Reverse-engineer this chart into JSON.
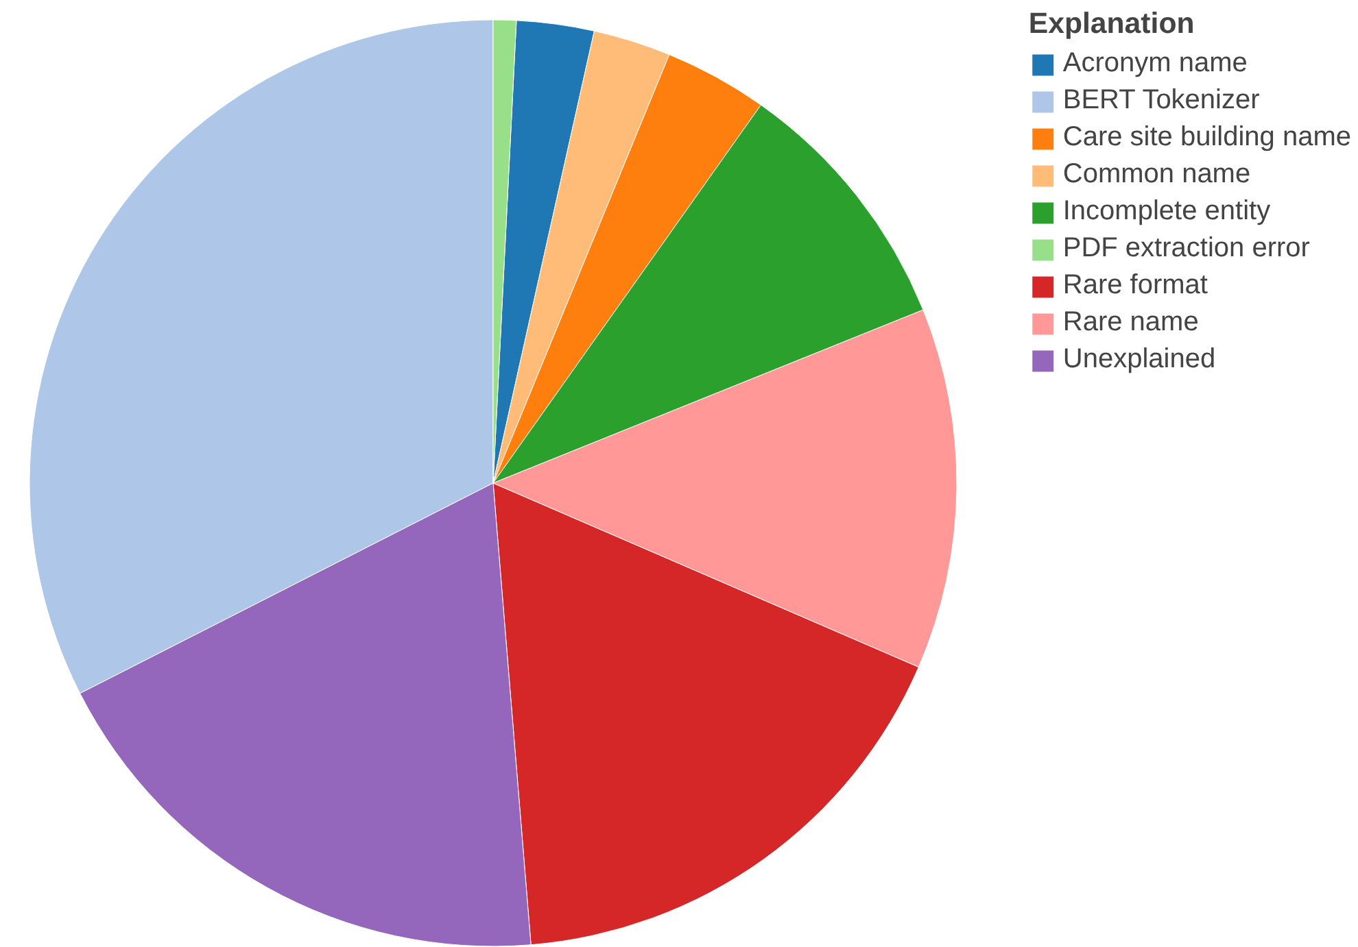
{
  "chart_data": {
    "type": "pie",
    "legend_title": "Explanation",
    "legend": "top right",
    "categories": [
      "Acronym name",
      "BERT Tokenizer",
      "Care site building name",
      "Common name",
      "Incomplete entity",
      "PDF extraction error",
      "Rare format",
      "Rare name",
      "Unexplained"
    ],
    "values": [
      2.7,
      32.5,
      3.6,
      2.7,
      9.1,
      0.8,
      17.2,
      12.6,
      18.8
    ],
    "colors": [
      "#1f77b4",
      "#aec7e8",
      "#ff7f0e",
      "#ffbb78",
      "#2ca02c",
      "#98df8a",
      "#d62728",
      "#ff9896",
      "#9467bd"
    ]
  }
}
